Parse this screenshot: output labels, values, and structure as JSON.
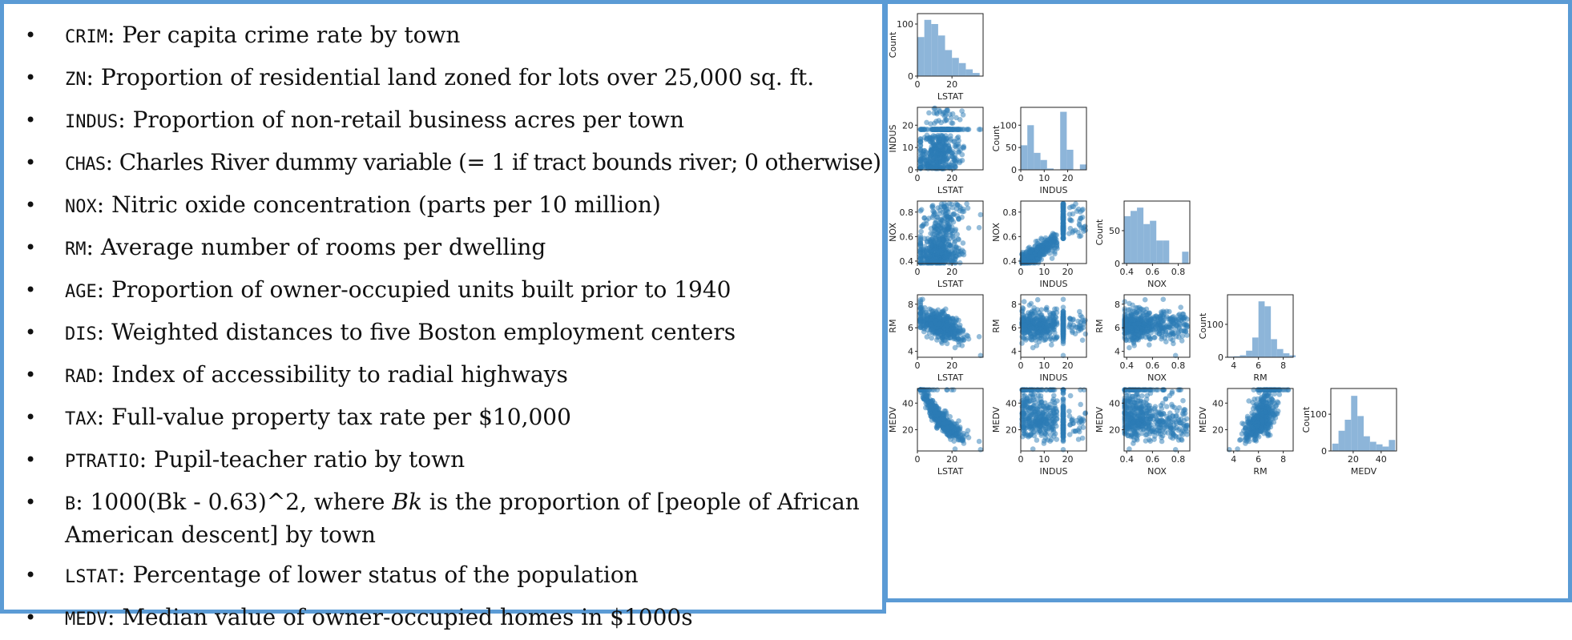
{
  "variables": [
    {
      "code": "CRIM",
      "desc": ": Per capita crime rate by town"
    },
    {
      "code": "ZN",
      "desc": ": Proportion of residential land zoned for lots over 25,000 sq. ft."
    },
    {
      "code": "INDUS",
      "desc": ": Proportion of non-retail business acres per town"
    },
    {
      "code": "CHAS",
      "desc": ": Charles River dummy variable (= 1 if tract bounds river; 0 otherwise)"
    },
    {
      "code": "NOX",
      "desc": ": Nitric oxide concentration (parts per 10 million)"
    },
    {
      "code": "RM",
      "desc": ": Average number of rooms per dwelling"
    },
    {
      "code": "AGE",
      "desc": ": Proportion of owner-occupied units built prior to 1940"
    },
    {
      "code": "DIS",
      "desc": ": Weighted distances to five Boston employment centers"
    },
    {
      "code": "RAD",
      "desc": ": Index of accessibility to radial highways"
    },
    {
      "code": "TAX",
      "desc": ": Full-value property tax rate per $10,000"
    },
    {
      "code": "PTRATIO",
      "desc": ": Pupil-teacher ratio by town"
    },
    {
      "code": "B",
      "desc_a": ": 1000(Bk - 0.63)^2, where ",
      "desc_em": "Bk",
      "desc_b": " is the proportion of [people of African American descent] by town"
    },
    {
      "code": "LSTAT",
      "desc": ": Percentage of  lower status of the population"
    },
    {
      "code": "MEDV",
      "desc": ": Median value of owner-occupied homes in $1000s"
    }
  ],
  "colors": {
    "border": "#5b9bd5",
    "histogram": "#8db5d9",
    "scatter": "#2c7bb6"
  },
  "chart_data": {
    "type": "scatter",
    "title": "",
    "variables": [
      "LSTAT",
      "INDUS",
      "NOX",
      "RM",
      "MEDV"
    ],
    "layout": "lower-triangular pair plot",
    "ranges": {
      "LSTAT": [
        0,
        38
      ],
      "INDUS": [
        0,
        28
      ],
      "NOX": [
        0.38,
        0.89
      ],
      "RM": [
        3.5,
        8.8
      ],
      "MEDV": [
        4,
        51
      ]
    },
    "ticks": {
      "LSTAT": [
        0,
        20
      ],
      "INDUS": [
        0,
        10,
        20
      ],
      "NOX": [
        0.4,
        0.6,
        0.8
      ],
      "RM": [
        4,
        6,
        8
      ],
      "MEDV": [
        20,
        40
      ]
    },
    "hist_ylabel": "Count",
    "histograms": {
      "LSTAT": {
        "ylim": [
          0,
          120
        ],
        "yticks": [
          0,
          100
        ],
        "bins": [
          0,
          4,
          8,
          12,
          16,
          20,
          24,
          28,
          32,
          36
        ],
        "counts": [
          75,
          108,
          100,
          78,
          50,
          35,
          25,
          13,
          6
        ]
      },
      "INDUS": {
        "ylim": [
          0,
          140
        ],
        "yticks": [
          0,
          50,
          100
        ],
        "bins": [
          0,
          2.8,
          5.6,
          8.4,
          11.2,
          14,
          16.8,
          19.6,
          22.4,
          25.2,
          28
        ],
        "counts": [
          55,
          100,
          38,
          22,
          3,
          0,
          130,
          45,
          0,
          12
        ]
      },
      "NOX": {
        "ylim": [
          0,
          95
        ],
        "yticks": [
          0,
          50
        ],
        "bins": [
          0.38,
          0.43,
          0.48,
          0.53,
          0.58,
          0.63,
          0.68,
          0.73,
          0.78,
          0.83,
          0.88
        ],
        "counts": [
          72,
          80,
          85,
          60,
          65,
          35,
          35,
          0,
          0,
          18
        ]
      },
      "RM": {
        "ylim": [
          0,
          190
        ],
        "yticks": [
          0,
          100
        ],
        "bins": [
          3.5,
          4.0,
          4.5,
          5.0,
          5.5,
          6.0,
          6.5,
          7.0,
          7.5,
          8.0,
          8.5,
          9.0
        ],
        "counts": [
          2,
          3,
          6,
          20,
          60,
          170,
          155,
          55,
          25,
          12,
          6
        ]
      },
      "MEDV": {
        "ylim": [
          0,
          170
        ],
        "yticks": [
          0,
          100
        ],
        "bins": [
          5,
          9.5,
          14,
          18.5,
          23,
          27.5,
          32,
          36.5,
          41,
          45.5,
          50
        ],
        "counts": [
          20,
          55,
          85,
          150,
          95,
          40,
          25,
          18,
          12,
          30
        ]
      }
    },
    "pairs": [
      {
        "x": "INDUS",
        "y": "LSTAT"
      },
      {
        "x": "NOX",
        "y": "LSTAT"
      },
      {
        "x": "NOX",
        "y": "INDUS"
      },
      {
        "x": "RM",
        "y": "LSTAT"
      },
      {
        "x": "RM",
        "y": "INDUS"
      },
      {
        "x": "RM",
        "y": "NOX"
      },
      {
        "x": "MEDV",
        "y": "LSTAT"
      },
      {
        "x": "MEDV",
        "y": "INDUS"
      },
      {
        "x": "MEDV",
        "y": "NOX"
      },
      {
        "x": "MEDV",
        "y": "RM"
      }
    ],
    "point_count": 506,
    "grid": false,
    "legend": "none"
  }
}
